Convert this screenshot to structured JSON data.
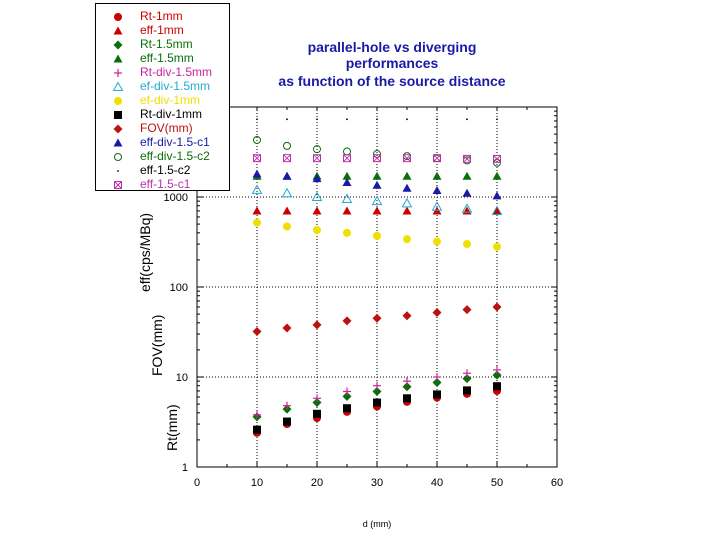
{
  "chart_data": {
    "type": "scatter",
    "title": [
      "parallel-hole vs diverging",
      "performances",
      "as function of the source distance"
    ],
    "xlabel": "d (mm)",
    "ylabels": [
      "Rt(mm)",
      "FOV(mm)",
      "eff(cps/MBq)"
    ],
    "xlim": [
      0,
      60
    ],
    "ylim": [
      1,
      10000
    ],
    "yscale": "log",
    "xticks": [
      0,
      10,
      20,
      30,
      40,
      50,
      60
    ],
    "yticks": [
      1,
      10,
      100,
      1000
    ],
    "ytick_labels": [
      "1",
      "10",
      "100",
      "1000"
    ],
    "x": [
      10,
      15,
      20,
      25,
      30,
      35,
      40,
      45,
      50
    ],
    "series": [
      {
        "name": "Rt-1mm",
        "marker": "circle",
        "color": "#cc0000",
        "values": [
          2.4,
          3.0,
          3.5,
          4.1,
          4.7,
          5.3,
          5.9,
          6.5,
          7.0
        ]
      },
      {
        "name": "eff-1mm",
        "marker": "triangle",
        "color": "#cc0000",
        "values": [
          700,
          700,
          700,
          700,
          700,
          700,
          700,
          700,
          700
        ]
      },
      {
        "name": "Rt-1.5mm",
        "marker": "diamond",
        "color": "#0a6e0a",
        "values": [
          3.6,
          4.4,
          5.2,
          6.1,
          6.9,
          7.8,
          8.7,
          9.6,
          10.5
        ]
      },
      {
        "name": "eff-1.5mm",
        "marker": "triangle",
        "color": "#0a6e0a",
        "values": [
          1700,
          1700,
          1700,
          1700,
          1700,
          1700,
          1700,
          1700,
          1700
        ]
      },
      {
        "name": "Rt-div-1.5mm",
        "marker": "plus",
        "color": "#cc2299",
        "values": [
          3.8,
          4.8,
          5.8,
          6.9,
          8.0,
          9.0,
          10.0,
          11.0,
          12.0
        ]
      },
      {
        "name": "ef-div-1.5mm",
        "marker": "triangle-open",
        "color": "#22aacc",
        "values": [
          1200,
          1100,
          1000,
          950,
          900,
          850,
          780,
          740,
          700
        ]
      },
      {
        "name": "ef-div-1mm",
        "marker": "circle",
        "color": "#f0e000",
        "values": [
          520,
          470,
          430,
          400,
          370,
          340,
          320,
          300,
          280
        ]
      },
      {
        "name": "Rt-div-1mm",
        "marker": "square",
        "color": "#000000",
        "values": [
          2.6,
          3.2,
          3.9,
          4.5,
          5.2,
          5.8,
          6.4,
          7.1,
          7.9
        ]
      },
      {
        "name": "FOV(mm)",
        "marker": "diamond",
        "color": "#bb1111",
        "values": [
          32,
          35,
          38,
          42,
          45,
          48,
          52,
          56,
          60
        ]
      },
      {
        "name": "eff-div-1.5-c1",
        "marker": "triangle",
        "color": "#1a1aa6",
        "values": [
          1800,
          1700,
          1600,
          1450,
          1350,
          1250,
          1180,
          1100,
          1030
        ]
      },
      {
        "name": "eff-div-1.5-c2",
        "marker": "circle-open",
        "color": "#0a6e0a",
        "values": [
          4300,
          3700,
          3400,
          3200,
          3000,
          2850,
          2700,
          2550,
          2400
        ]
      },
      {
        "name": "eff-1.5-c2",
        "marker": "dot",
        "color": "#000000",
        "values": [
          7300,
          7300,
          7300,
          7300,
          7300,
          7300,
          7300,
          7300,
          7300
        ]
      },
      {
        "name": "eff-1.5-c1",
        "marker": "square-x",
        "color": "#bb33aa",
        "values": [
          2700,
          2700,
          2700,
          2700,
          2700,
          2700,
          2700,
          2650,
          2650
        ]
      }
    ]
  }
}
